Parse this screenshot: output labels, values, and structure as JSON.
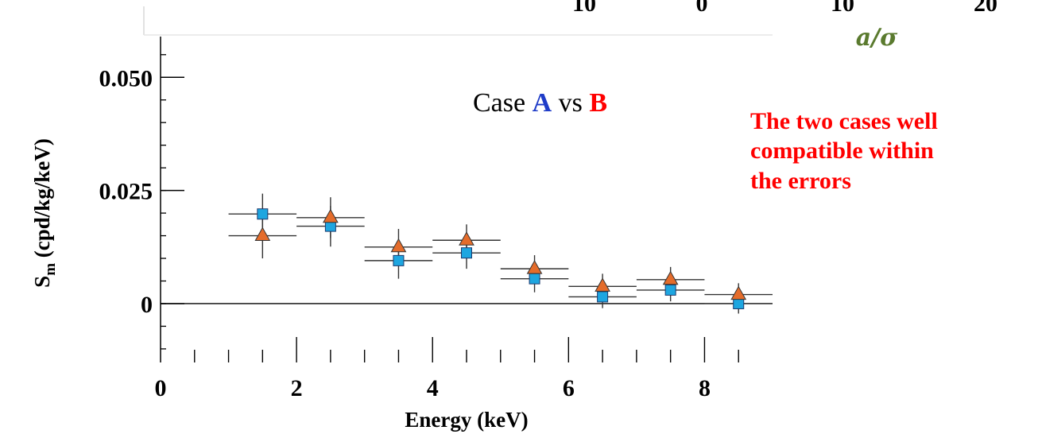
{
  "chart_data": {
    "type": "scatter",
    "xlabel": "Energy (keV)",
    "ylabel": {
      "main": "S",
      "sub": "m",
      "rest": " (cpd/kg/keV)"
    },
    "xlim": [
      0,
      9
    ],
    "ylim": [
      -0.013,
      0.059
    ],
    "x_ticks": [
      "0",
      "2",
      "4",
      "6",
      "8"
    ],
    "y_ticks": [
      {
        "value": 0,
        "label": "0"
      },
      {
        "value": 0.025,
        "label": "0.025"
      },
      {
        "value": 0.05,
        "label": "0.050"
      }
    ],
    "zero_line": true,
    "series": [
      {
        "marker": "square",
        "color": "#1ea6e0",
        "points": [
          {
            "x": 1.5,
            "xerr": 0.5,
            "y": 0.0198,
            "yerr": 0.0045
          },
          {
            "x": 2.5,
            "xerr": 0.5,
            "y": 0.0171,
            "yerr": 0.0045
          },
          {
            "x": 3.5,
            "xerr": 0.5,
            "y": 0.0095,
            "yerr": 0.004
          },
          {
            "x": 4.5,
            "xerr": 0.5,
            "y": 0.0112,
            "yerr": 0.0035
          },
          {
            "x": 5.5,
            "xerr": 0.5,
            "y": 0.0055,
            "yerr": 0.003
          },
          {
            "x": 6.5,
            "xerr": 0.5,
            "y": 0.0015,
            "yerr": 0.0025
          },
          {
            "x": 7.5,
            "xerr": 0.5,
            "y": 0.003,
            "yerr": 0.0025
          },
          {
            "x": 8.5,
            "xerr": 0.5,
            "y": 0.0,
            "yerr": 0.0022
          }
        ]
      },
      {
        "marker": "triangle",
        "color": "#e46c2b",
        "points": [
          {
            "x": 1.5,
            "xerr": 0.5,
            "y": 0.015,
            "yerr": 0.005
          },
          {
            "x": 2.5,
            "xerr": 0.5,
            "y": 0.019,
            "yerr": 0.0045
          },
          {
            "x": 3.5,
            "xerr": 0.5,
            "y": 0.0125,
            "yerr": 0.004
          },
          {
            "x": 4.5,
            "xerr": 0.5,
            "y": 0.014,
            "yerr": 0.0035
          },
          {
            "x": 5.5,
            "xerr": 0.5,
            "y": 0.0077,
            "yerr": 0.003
          },
          {
            "x": 6.5,
            "xerr": 0.5,
            "y": 0.0038,
            "yerr": 0.0028
          },
          {
            "x": 7.5,
            "xerr": 0.5,
            "y": 0.0053,
            "yerr": 0.0028
          },
          {
            "x": 8.5,
            "xerr": 0.5,
            "y": 0.002,
            "yerr": 0.0025
          }
        ]
      }
    ]
  },
  "annotation": {
    "case_prefix": "Case ",
    "case_a": "A",
    "case_a_color": "#1f3cc8",
    "case_mid": " vs ",
    "case_b": "B",
    "case_b_color": "#ff0000",
    "note_lines": [
      "The two cases well",
      "compatible within",
      "the errors"
    ],
    "note_color": "#ff0000"
  },
  "top_fragment": {
    "tick_labels": [
      "10",
      "0",
      "10",
      "20"
    ],
    "axis_label": "a/σ",
    "axis_label_color": "#5a7a2e"
  }
}
